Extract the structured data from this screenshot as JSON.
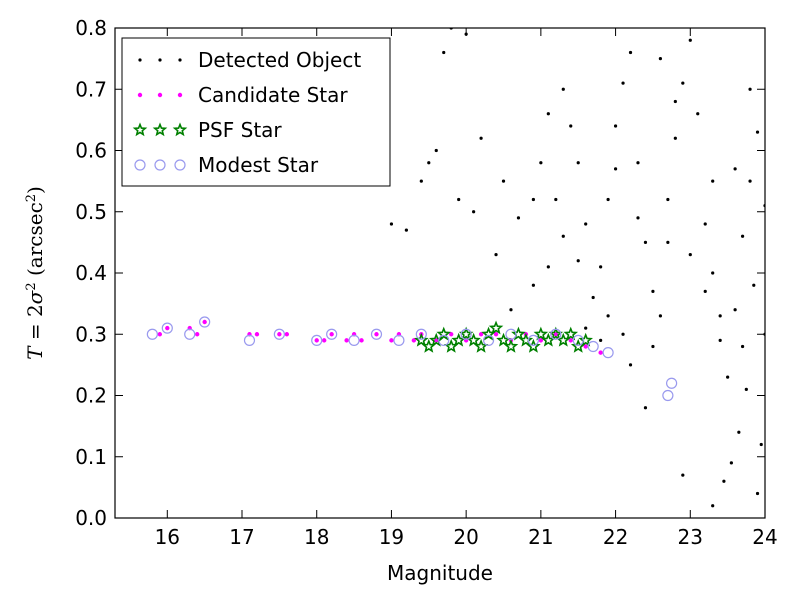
{
  "chart_data": {
    "type": "scatter",
    "xlabel": "Magnitude",
    "ylabel": {
      "parts": [
        {
          "text": "T",
          "style": "math"
        },
        {
          "text": " = 2",
          "style": "roman"
        },
        {
          "text": "σ",
          "style": "math"
        },
        {
          "text": "2",
          "style": "sup"
        },
        {
          "text": " (arcsec",
          "style": "roman"
        },
        {
          "text": "2",
          "style": "sup"
        },
        {
          "text": ")",
          "style": "roman"
        }
      ]
    },
    "xlim": [
      15.3,
      24
    ],
    "ylim": [
      0.0,
      0.8
    ],
    "xticks": [
      16,
      17,
      18,
      19,
      20,
      21,
      22,
      23,
      24
    ],
    "xtick_labels": [
      "16",
      "17",
      "18",
      "19",
      "20",
      "21",
      "22",
      "23",
      "24"
    ],
    "yticks": [
      0.0,
      0.1,
      0.2,
      0.3,
      0.4,
      0.5,
      0.6,
      0.7,
      0.8
    ],
    "ytick_labels": [
      "0.0",
      "0.1",
      "0.2",
      "0.3",
      "0.4",
      "0.5",
      "0.6",
      "0.7",
      "0.8"
    ],
    "grid": false,
    "legend_position": "top-left",
    "series": [
      {
        "name": "Detected Object",
        "marker": "dot",
        "color": "#000000",
        "points": [
          [
            19.0,
            0.48
          ],
          [
            19.2,
            0.47
          ],
          [
            19.7,
            0.76
          ],
          [
            19.8,
            0.8
          ],
          [
            20.0,
            0.79
          ],
          [
            19.6,
            0.6
          ],
          [
            19.4,
            0.55
          ],
          [
            19.5,
            0.58
          ],
          [
            20.2,
            0.62
          ],
          [
            20.5,
            0.55
          ],
          [
            20.7,
            0.49
          ],
          [
            20.9,
            0.52
          ],
          [
            21.1,
            0.66
          ],
          [
            21.3,
            0.7
          ],
          [
            21.5,
            0.58
          ],
          [
            21.6,
            0.48
          ],
          [
            21.8,
            0.41
          ],
          [
            21.9,
            0.52
          ],
          [
            22.0,
            0.64
          ],
          [
            22.1,
            0.71
          ],
          [
            22.2,
            0.76
          ],
          [
            22.3,
            0.58
          ],
          [
            22.4,
            0.45
          ],
          [
            22.5,
            0.37
          ],
          [
            22.6,
            0.33
          ],
          [
            22.7,
            0.52
          ],
          [
            22.8,
            0.62
          ],
          [
            22.9,
            0.71
          ],
          [
            23.0,
            0.78
          ],
          [
            23.1,
            0.66
          ],
          [
            23.2,
            0.48
          ],
          [
            23.3,
            0.4
          ],
          [
            23.4,
            0.29
          ],
          [
            23.5,
            0.23
          ],
          [
            23.6,
            0.34
          ],
          [
            23.7,
            0.46
          ],
          [
            23.8,
            0.55
          ],
          [
            23.9,
            0.63
          ],
          [
            24.0,
            0.51
          ],
          [
            23.85,
            0.38
          ],
          [
            23.75,
            0.21
          ],
          [
            23.65,
            0.14
          ],
          [
            23.55,
            0.09
          ],
          [
            23.45,
            0.06
          ],
          [
            23.95,
            0.12
          ],
          [
            23.9,
            0.04
          ],
          [
            23.3,
            0.02
          ],
          [
            22.9,
            0.07
          ],
          [
            22.4,
            0.18
          ],
          [
            22.2,
            0.25
          ],
          [
            21.9,
            0.33
          ],
          [
            21.7,
            0.36
          ],
          [
            21.5,
            0.42
          ],
          [
            21.3,
            0.46
          ],
          [
            21.1,
            0.41
          ],
          [
            20.9,
            0.38
          ],
          [
            20.6,
            0.34
          ],
          [
            20.4,
            0.43
          ],
          [
            20.1,
            0.5
          ],
          [
            19.9,
            0.52
          ],
          [
            21.0,
            0.58
          ],
          [
            21.2,
            0.52
          ],
          [
            21.4,
            0.64
          ],
          [
            22.6,
            0.75
          ],
          [
            22.8,
            0.68
          ],
          [
            23.3,
            0.55
          ],
          [
            23.6,
            0.57
          ],
          [
            23.8,
            0.7
          ],
          [
            22.0,
            0.57
          ],
          [
            22.3,
            0.49
          ],
          [
            22.7,
            0.45
          ],
          [
            23.0,
            0.43
          ],
          [
            23.2,
            0.37
          ],
          [
            23.4,
            0.33
          ],
          [
            23.7,
            0.28
          ],
          [
            24.0,
            0.3
          ],
          [
            22.5,
            0.28
          ],
          [
            22.1,
            0.3
          ],
          [
            21.8,
            0.29
          ],
          [
            21.6,
            0.31
          ]
        ]
      },
      {
        "name": "Candidate Star",
        "marker": "circle",
        "color": "#ff00ff",
        "points": [
          [
            15.9,
            0.3
          ],
          [
            16.0,
            0.31
          ],
          [
            16.3,
            0.31
          ],
          [
            16.4,
            0.3
          ],
          [
            16.5,
            0.32
          ],
          [
            17.1,
            0.3
          ],
          [
            17.2,
            0.3
          ],
          [
            17.5,
            0.3
          ],
          [
            17.6,
            0.3
          ],
          [
            18.0,
            0.29
          ],
          [
            18.1,
            0.29
          ],
          [
            18.2,
            0.3
          ],
          [
            18.4,
            0.29
          ],
          [
            18.5,
            0.3
          ],
          [
            18.6,
            0.29
          ],
          [
            18.8,
            0.3
          ],
          [
            19.0,
            0.29
          ],
          [
            19.1,
            0.3
          ],
          [
            19.3,
            0.29
          ],
          [
            19.4,
            0.3
          ],
          [
            19.6,
            0.29
          ],
          [
            19.8,
            0.3
          ],
          [
            20.0,
            0.29
          ],
          [
            20.2,
            0.3
          ],
          [
            20.4,
            0.3
          ],
          [
            20.6,
            0.29
          ],
          [
            20.8,
            0.3
          ],
          [
            21.0,
            0.29
          ],
          [
            21.2,
            0.3
          ],
          [
            21.4,
            0.29
          ],
          [
            21.6,
            0.28
          ],
          [
            21.8,
            0.27
          ]
        ]
      },
      {
        "name": "PSF Star",
        "marker": "star",
        "color": "#008000",
        "points": [
          [
            19.4,
            0.29
          ],
          [
            19.5,
            0.28
          ],
          [
            19.6,
            0.29
          ],
          [
            19.7,
            0.3
          ],
          [
            19.8,
            0.28
          ],
          [
            19.9,
            0.29
          ],
          [
            20.0,
            0.3
          ],
          [
            20.1,
            0.29
          ],
          [
            20.2,
            0.28
          ],
          [
            20.3,
            0.3
          ],
          [
            20.4,
            0.31
          ],
          [
            20.5,
            0.29
          ],
          [
            20.6,
            0.28
          ],
          [
            20.7,
            0.3
          ],
          [
            20.8,
            0.29
          ],
          [
            20.9,
            0.28
          ],
          [
            21.0,
            0.3
          ],
          [
            21.1,
            0.29
          ],
          [
            21.2,
            0.3
          ],
          [
            21.3,
            0.29
          ],
          [
            21.4,
            0.3
          ],
          [
            21.5,
            0.28
          ],
          [
            21.6,
            0.29
          ]
        ]
      },
      {
        "name": "Modest Star",
        "marker": "open-circle",
        "color": "#9999ee",
        "points": [
          [
            15.8,
            0.3
          ],
          [
            16.0,
            0.31
          ],
          [
            16.3,
            0.3
          ],
          [
            16.5,
            0.32
          ],
          [
            17.1,
            0.29
          ],
          [
            17.5,
            0.3
          ],
          [
            18.0,
            0.29
          ],
          [
            18.2,
            0.3
          ],
          [
            18.5,
            0.29
          ],
          [
            18.8,
            0.3
          ],
          [
            19.1,
            0.29
          ],
          [
            19.4,
            0.3
          ],
          [
            19.7,
            0.29
          ],
          [
            20.0,
            0.3
          ],
          [
            20.3,
            0.29
          ],
          [
            20.6,
            0.3
          ],
          [
            20.9,
            0.29
          ],
          [
            21.2,
            0.3
          ],
          [
            21.5,
            0.29
          ],
          [
            21.7,
            0.28
          ],
          [
            21.9,
            0.27
          ],
          [
            22.7,
            0.2
          ],
          [
            22.75,
            0.22
          ]
        ]
      }
    ]
  }
}
